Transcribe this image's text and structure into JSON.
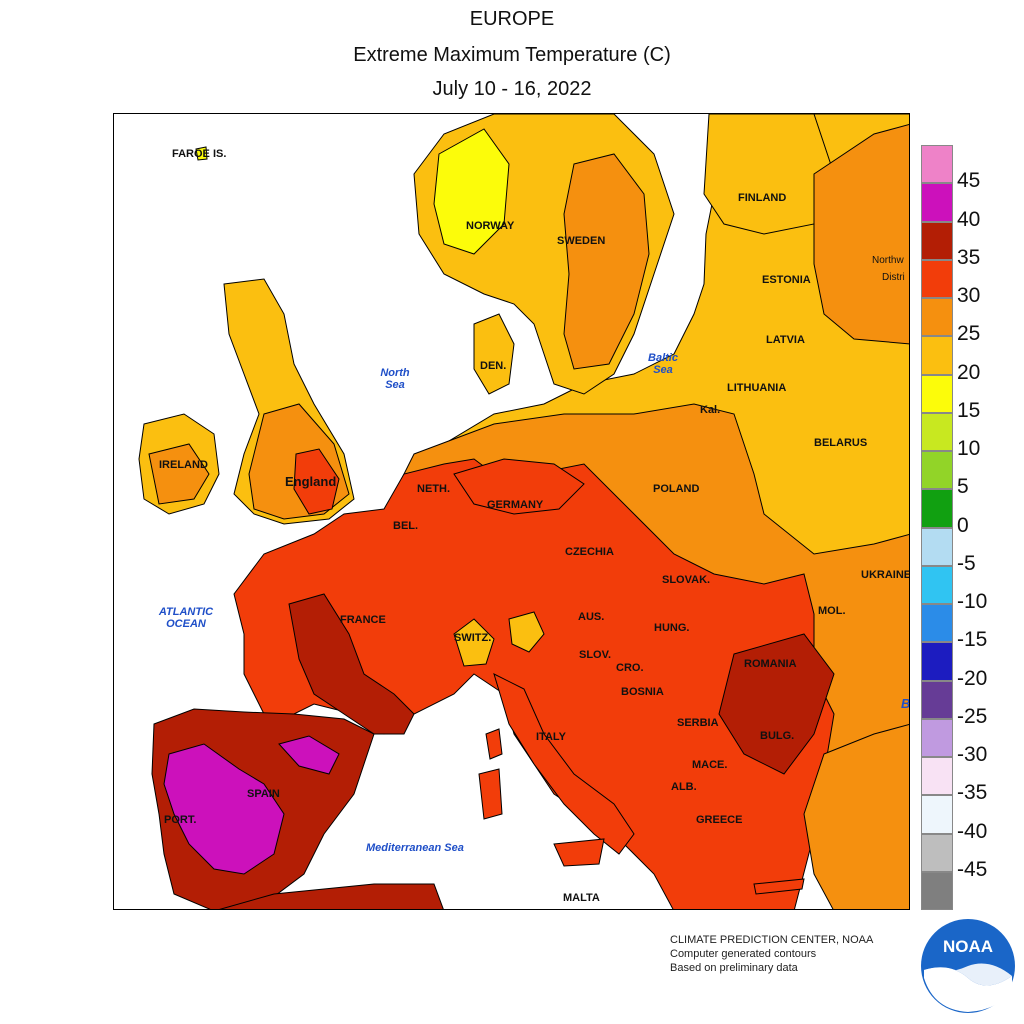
{
  "title": {
    "region": "EUROPE",
    "variable": "Extreme Maximum Temperature (C)",
    "period": "July 10 - 16, 2022"
  },
  "labels": {
    "faroe": "FAROE IS.",
    "norway": "NORWAY",
    "sweden": "SWEDEN",
    "finland": "FINLAND",
    "estonia": "ESTONIA",
    "latvia": "LATVIA",
    "lithuania": "LITHUANIA",
    "belarus": "BELARUS",
    "kal": "Kal.",
    "northwest_1": "Northw",
    "northwest_2": "Distri",
    "denmark": "DEN.",
    "ireland": "IRELAND",
    "england": "England",
    "neth": "NETH.",
    "bel": "BEL.",
    "germany": "GERMANY",
    "poland": "POLAND",
    "czechia": "CZECHIA",
    "slovak": "SLOVAK.",
    "ukraine": "UKRAINE",
    "france": "FRANCE",
    "switz": "SWITZ.",
    "aus": "AUS.",
    "hung": "HUNG.",
    "mol": "MOL.",
    "slov": "SLOV.",
    "cro": "CRO.",
    "romania": "ROMANIA",
    "bosnia": "BOSNIA",
    "serbia": "SERBIA",
    "italy": "ITALY",
    "bulg": "BULG.",
    "mace": "MACE.",
    "alb": "ALB.",
    "greece": "GREECE",
    "spain": "SPAIN",
    "port": "PORT.",
    "malta": "MALTA",
    "b": "B"
  },
  "seas": {
    "north_1": "North",
    "north_2": "Sea",
    "baltic_1": "Baltic",
    "baltic_2": "Sea",
    "atlantic_1": "ATLANTIC",
    "atlantic_2": "OCEAN",
    "med": "Mediterranean Sea"
  },
  "legend": {
    "colors": [
      "#ee82c8",
      "#cc11bb",
      "#b31e05",
      "#f23d0a",
      "#f5900f",
      "#fbbf10",
      "#fcfc0a",
      "#c8e820",
      "#92d428",
      "#11a011",
      "#b3dcf2",
      "#30c4f2",
      "#2b8ce8",
      "#1c1cc0",
      "#663c96",
      "#c09ae0",
      "#f8e2f4",
      "#eef6fc",
      "#bebebe",
      "#7f7f7f"
    ],
    "ticks": [
      "45",
      "40",
      "35",
      "30",
      "25",
      "20",
      "15",
      "10",
      "5",
      "0",
      "-5",
      "-10",
      "-15",
      "-20",
      "-25",
      "-30",
      "-35",
      "-40",
      "-45"
    ]
  },
  "credit": {
    "line1": "CLIMATE PREDICTION CENTER, NOAA",
    "line2": "Computer generated contours",
    "line3": "Based on preliminary data"
  },
  "logo": {
    "text": "NOAA",
    "icon": "noaa-logo-icon"
  }
}
